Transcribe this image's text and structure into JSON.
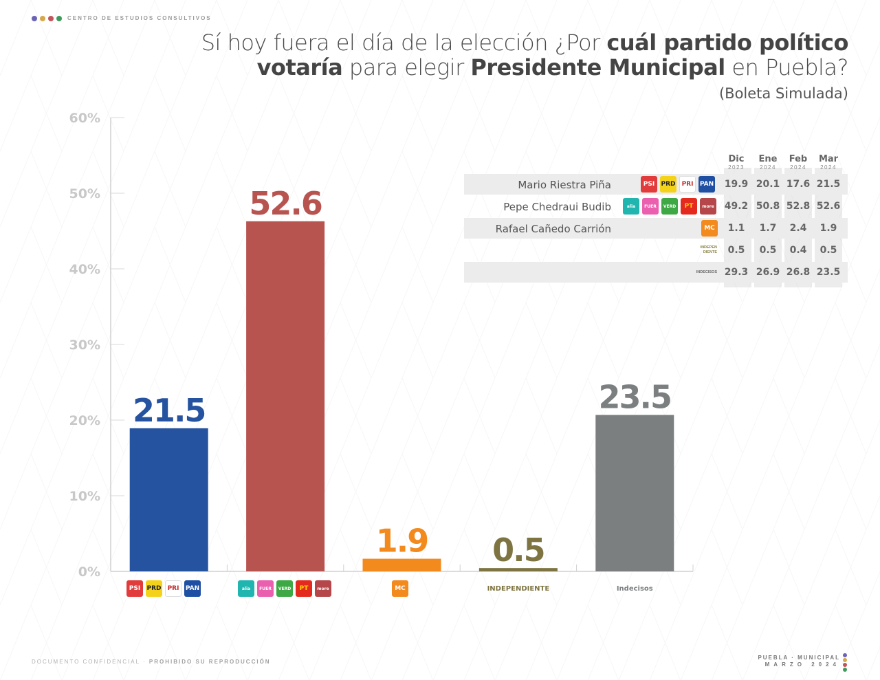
{
  "header": {
    "brand": "CENTRO DE ESTUDIOS CONSULTIVOS",
    "brand_dots": [
      "#6b63b5",
      "#d6a84a",
      "#c0555a",
      "#3e9a5a"
    ],
    "title_parts": [
      {
        "text": "Sí hoy fuera el día de la elección ¿Por ",
        "bold": false
      },
      {
        "text": "cuál partido político",
        "bold": true
      },
      {
        "text": "\n",
        "bold": false
      },
      {
        "text": "votaría",
        "bold": true
      },
      {
        "text": " para elegir ",
        "bold": false
      },
      {
        "text": "Presidente Municipal",
        "bold": true
      },
      {
        "text": " en Puebla?",
        "bold": false
      }
    ],
    "subtitle": "(Boleta Simulada)"
  },
  "chart_data": {
    "type": "bar",
    "title": "Sí hoy fuera el día de la elección ¿Por cuál partido político votaría para elegir Presidente Municipal en Puebla? (Boleta Simulada)",
    "xlabel": "",
    "ylabel": "",
    "ylim": [
      0,
      60
    ],
    "yticks": [
      "0%",
      "10%",
      "20%",
      "30%",
      "40%",
      "50%",
      "60%"
    ],
    "grid": false,
    "categories": [
      "PSI-PRD-PRI-PAN",
      "Alianza-Fuerza México-Verde-PT-Morena",
      "MC",
      "INDEPENDIENTE",
      "Indecisos"
    ],
    "values": [
      21.5,
      52.6,
      1.9,
      0.5,
      23.5
    ],
    "value_labels": [
      "21.5",
      "52.6",
      "1.9",
      "0.5",
      "23.5"
    ],
    "colors": [
      "#2553a0",
      "#b85450",
      "#f28a1e",
      "#7d7442",
      "#7b7f80"
    ],
    "category_text": [
      "",
      "",
      "",
      "INDEPENDIENTE",
      "Indecisos"
    ]
  },
  "logos": {
    "coalition_a": [
      {
        "name": "psi",
        "label": "PSI",
        "bg": "#e23b3b",
        "fg": "#fff"
      },
      {
        "name": "prd",
        "label": "PRD",
        "bg": "#f5d21a",
        "fg": "#222"
      },
      {
        "name": "pri",
        "label": "PRI",
        "bg": "#ffffff",
        "fg": "#c62828"
      },
      {
        "name": "pan",
        "label": "PAN",
        "bg": "#1f4fa3",
        "fg": "#fff"
      }
    ],
    "coalition_b": [
      {
        "name": "alianza",
        "label": "alianza",
        "bg": "#21b5b0",
        "fg": "#fff"
      },
      {
        "name": "fuerza-mexico",
        "label": "FUERZA MÉXICO",
        "bg": "#ea5fae",
        "fg": "#fff"
      },
      {
        "name": "verde",
        "label": "VERDE",
        "bg": "#3ea845",
        "fg": "#fff"
      },
      {
        "name": "pt",
        "label": "PT",
        "bg": "#e42a1f",
        "fg": "#ffd400"
      },
      {
        "name": "morena",
        "label": "morena",
        "bg": "#b5474a",
        "fg": "#fff"
      }
    ],
    "mc": [
      {
        "name": "movimiento-ciudadano",
        "label": "MC",
        "bg": "#f28a1e",
        "fg": "#fff"
      }
    ]
  },
  "table": {
    "months": [
      {
        "month": "Dic",
        "year": "2023"
      },
      {
        "month": "Ene",
        "year": "2024"
      },
      {
        "month": "Feb",
        "year": "2024"
      },
      {
        "month": "Mar",
        "year": "2024"
      }
    ],
    "rows": [
      {
        "name": "Mario Riestra Piña",
        "values": [
          "19.9",
          "20.1",
          "17.6",
          "21.5"
        ]
      },
      {
        "name": "Pepe Chedraui Budib",
        "values": [
          "49.2",
          "50.8",
          "52.8",
          "52.6"
        ]
      },
      {
        "name": "Rafael Cañedo Carrión",
        "values": [
          "1.1",
          "1.7",
          "2.4",
          "1.9"
        ]
      },
      {
        "name": "",
        "tag_line1": "INDEPEN",
        "tag_line2": "DIENTE",
        "values": [
          "0.5",
          "0.5",
          "0.4",
          "0.5"
        ]
      },
      {
        "name": "",
        "tag_line1": "INDECISOS",
        "tag_line2": "",
        "values": [
          "29.3",
          "26.9",
          "26.8",
          "23.5"
        ]
      }
    ]
  },
  "footer": {
    "left_light": "DOCUMENTO CONFIDENCIAL · ",
    "left_bold": "PROHIBIDO SU REPRODUCCIÓN",
    "right_line1": "PUEBLA · MUNICIPAL",
    "right_line2": "MARZO 2024"
  }
}
